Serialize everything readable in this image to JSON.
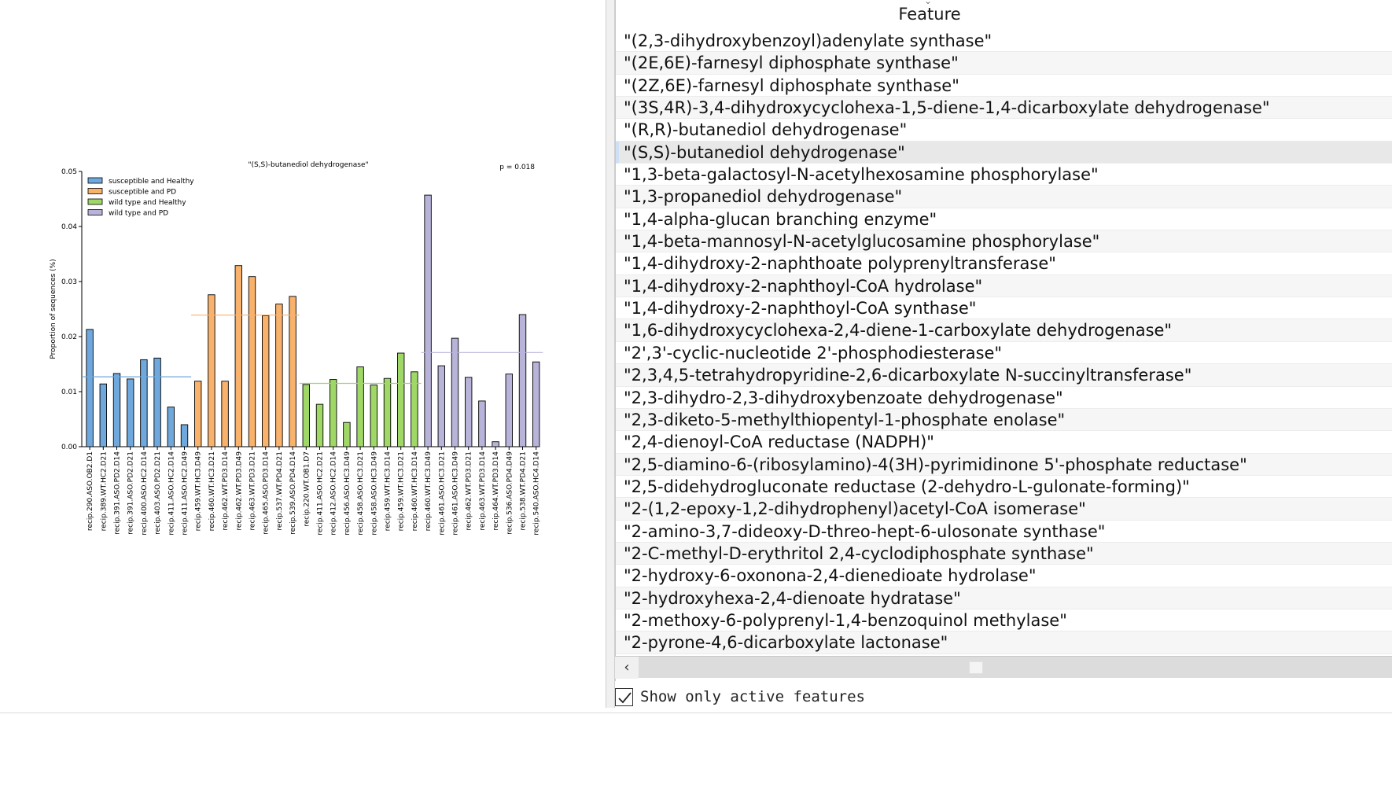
{
  "chart_data": {
    "type": "bar",
    "title": "\"(S,S)-butanediol dehydrogenase\"",
    "p_label": "p = 0.018",
    "ylabel": "Proportion of sequences (%)",
    "ylim": [
      0,
      0.05
    ],
    "yticks": [
      "0.00",
      "0.01",
      "0.02",
      "0.03",
      "0.04",
      "0.05"
    ],
    "legend_position": "top-left",
    "groups": [
      {
        "name": "susceptible and Healthy",
        "color": "#6fa8dc",
        "mean": 0.0127,
        "bars": [
          {
            "label": "recip.290.ASO.OB2.D1",
            "value": 0.0213
          },
          {
            "label": "recip.389.WT.HC2.D21",
            "value": 0.0114
          },
          {
            "label": "recip.391.ASO.PD2.D14",
            "value": 0.0133
          },
          {
            "label": "recip.391.ASO.PD2.D21",
            "value": 0.0123
          },
          {
            "label": "recip.400.ASO.HC2.D14",
            "value": 0.0158
          },
          {
            "label": "recip.403.ASO.PD2.D21",
            "value": 0.0161
          },
          {
            "label": "recip.411.ASO.HC2.D14",
            "value": 0.0072
          },
          {
            "label": "recip.411.ASO.HC2.D49",
            "value": 0.004
          }
        ]
      },
      {
        "name": "susceptible and PD",
        "color": "#f9b26b",
        "mean": 0.0239,
        "bars": [
          {
            "label": "recip.459.WT.HC3.D49",
            "value": 0.0119
          },
          {
            "label": "recip.460.WT.HC3.D21",
            "value": 0.0276
          },
          {
            "label": "recip.462.WT.PD3.D14",
            "value": 0.0119
          },
          {
            "label": "recip.462.WT.PD3.D49",
            "value": 0.0329
          },
          {
            "label": "recip.463.WT.PD3.D21",
            "value": 0.0309
          },
          {
            "label": "recip.465.ASO.PD3.D14",
            "value": 0.0238
          },
          {
            "label": "recip.537.WT.PD4.D21",
            "value": 0.0259
          },
          {
            "label": "recip.539.ASO.PD4.D14",
            "value": 0.0273
          }
        ]
      },
      {
        "name": "wild type and Healthy",
        "color": "#9fd866",
        "mean": 0.0115,
        "bars": [
          {
            "label": "recip.220.WT.OB1.D7",
            "value": 0.0113
          },
          {
            "label": "recip.411.ASO.HC2.D21",
            "value": 0.0077
          },
          {
            "label": "recip.412.ASO.HC2.D14",
            "value": 0.0122
          },
          {
            "label": "recip.456.ASO.HC3.D49",
            "value": 0.0044
          },
          {
            "label": "recip.458.ASO.HC3.D21",
            "value": 0.0145
          },
          {
            "label": "recip.458.ASO.HC3.D49",
            "value": 0.0112
          },
          {
            "label": "recip.459.WT.HC3.D14",
            "value": 0.0124
          },
          {
            "label": "recip.459.WT.HC3.D21",
            "value": 0.017
          },
          {
            "label": "recip.460.WT.HC3.D14",
            "value": 0.0136
          }
        ]
      },
      {
        "name": "wild type and PD",
        "color": "#b8b3d9",
        "mean": 0.0171,
        "bars": [
          {
            "label": "recip.460.WT.HC3.D49",
            "value": 0.0457
          },
          {
            "label": "recip.461.ASO.HC3.D21",
            "value": 0.0147
          },
          {
            "label": "recip.461.ASO.HC3.D49",
            "value": 0.0197
          },
          {
            "label": "recip.462.WT.PD3.D21",
            "value": 0.0126
          },
          {
            "label": "recip.463.WT.PD3.D14",
            "value": 0.0083
          },
          {
            "label": "recip.464.WT.PD3.D14",
            "value": 0.0009
          },
          {
            "label": "recip.536.ASO.PD4.D49",
            "value": 0.0132
          },
          {
            "label": "recip.538.WT.PD4.D21",
            "value": 0.024
          },
          {
            "label": "recip.540.ASO.HC4.D14",
            "value": 0.0154
          }
        ]
      }
    ]
  },
  "feature_panel": {
    "header": "Feature",
    "selected_index": 5,
    "items": [
      "\"(2,3-dihydroxybenzoyl)adenylate synthase\"",
      "\"(2E,6E)-farnesyl diphosphate synthase\"",
      "\"(2Z,6E)-farnesyl diphosphate synthase\"",
      "\"(3S,4R)-3,4-dihydroxycyclohexa-1,5-diene-1,4-dicarboxylate dehydrogenase\"",
      "\"(R,R)-butanediol dehydrogenase\"",
      "\"(S,S)-butanediol dehydrogenase\"",
      "\"1,3-beta-galactosyl-N-acetylhexosamine phosphorylase\"",
      "\"1,3-propanediol dehydrogenase\"",
      "\"1,4-alpha-glucan branching enzyme\"",
      "\"1,4-beta-mannosyl-N-acetylglucosamine phosphorylase\"",
      "\"1,4-dihydroxy-2-naphthoate polyprenyltransferase\"",
      "\"1,4-dihydroxy-2-naphthoyl-CoA hydrolase\"",
      "\"1,4-dihydroxy-2-naphthoyl-CoA synthase\"",
      "\"1,6-dihydroxycyclohexa-2,4-diene-1-carboxylate dehydrogenase\"",
      "\"2',3'-cyclic-nucleotide 2'-phosphodiesterase\"",
      "\"2,3,4,5-tetrahydropyridine-2,6-dicarboxylate N-succinyltransferase\"",
      "\"2,3-dihydro-2,3-dihydroxybenzoate dehydrogenase\"",
      "\"2,3-diketo-5-methylthiopentyl-1-phosphate enolase\"",
      "\"2,4-dienoyl-CoA reductase (NADPH)\"",
      "\"2,5-diamino-6-(ribosylamino)-4(3H)-pyrimidinone 5'-phosphate reductase\"",
      "\"2,5-didehydrogluconate reductase (2-dehydro-L-gulonate-forming)\"",
      "\"2-(1,2-epoxy-1,2-dihydrophenyl)acetyl-CoA isomerase\"",
      "\"2-amino-3,7-dideoxy-D-threo-hept-6-ulosonate synthase\"",
      "\"2-C-methyl-D-erythritol 2,4-cyclodiphosphate synthase\"",
      "\"2-hydroxy-6-oxonona-2,4-dienedioate hydrolase\"",
      "\"2-hydroxyhexa-2,4-dienoate hydratase\"",
      "\"2-methoxy-6-polyprenyl-1,4-benzoquinol methylase\"",
      "\"2-pyrone-4,6-dicarboxylate lactonase\""
    ]
  },
  "active_features": {
    "label": "Show only active features",
    "checked": true
  }
}
